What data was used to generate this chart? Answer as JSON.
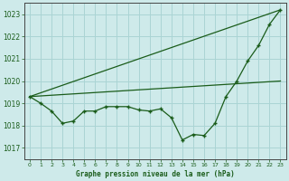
{
  "title": "Graphe pression niveau de la mer (hPa)",
  "bg_color": "#ceeaea",
  "grid_color": "#aad4d4",
  "line_color": "#1a5c1a",
  "xlim": [
    -0.5,
    23.5
  ],
  "ylim": [
    1016.5,
    1023.5
  ],
  "yticks": [
    1017,
    1018,
    1019,
    1020,
    1021,
    1022,
    1023
  ],
  "xticks": [
    0,
    1,
    2,
    3,
    4,
    5,
    6,
    7,
    8,
    9,
    10,
    11,
    12,
    13,
    14,
    15,
    16,
    17,
    18,
    19,
    20,
    21,
    22,
    23
  ],
  "straight_line1_x": [
    0,
    23
  ],
  "straight_line1_y": [
    1019.3,
    1023.2
  ],
  "straight_line2_x": [
    0,
    23
  ],
  "straight_line2_y": [
    1019.3,
    1020.0
  ],
  "main_line_x": [
    0,
    1,
    2,
    3,
    4,
    5,
    6,
    7,
    8,
    9,
    10,
    11,
    12,
    13,
    14,
    15,
    16,
    17,
    18,
    19,
    20,
    21,
    22,
    23
  ],
  "main_line_y": [
    1019.3,
    1019.0,
    1018.65,
    1018.1,
    1018.2,
    1018.65,
    1018.65,
    1018.85,
    1018.85,
    1018.85,
    1018.7,
    1018.65,
    1018.75,
    1018.35,
    1017.35,
    1017.6,
    1017.55,
    1018.1,
    1019.3,
    1020.0,
    1020.9,
    1021.6,
    1022.55,
    1023.2
  ]
}
